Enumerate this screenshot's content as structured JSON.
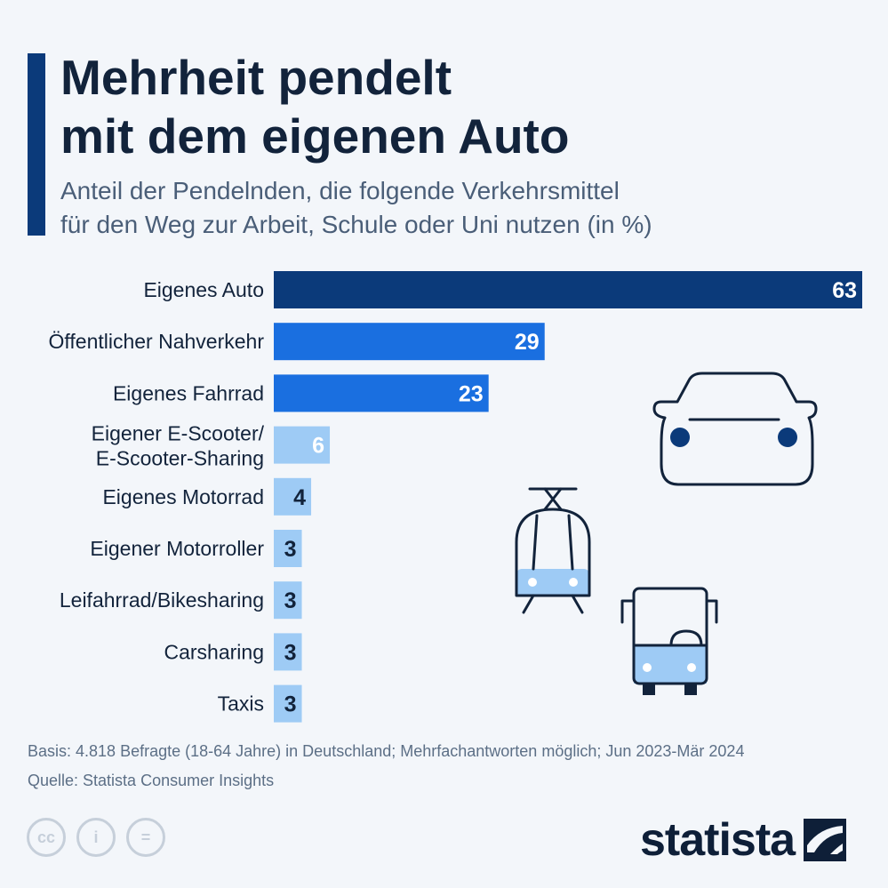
{
  "header": {
    "title_line1": "Mehrheit pendelt",
    "title_line2": "mit dem eigenen Auto",
    "subtitle_line1": "Anteil der Pendelnden, die folgende Verkehrsmittel",
    "subtitle_line2": "für den Weg zur Arbeit, Schule oder Uni nutzen (in %)"
  },
  "chart_data": {
    "type": "bar",
    "orientation": "horizontal",
    "title": "Mehrheit pendelt mit dem eigenen Auto",
    "subtitle": "Anteil der Pendelnden, die folgende Verkehrsmittel für den Weg zur Arbeit, Schule oder Uni nutzen (in %)",
    "categories": [
      [
        "Eigenes Auto"
      ],
      [
        "Öffentlicher Nahverkehr"
      ],
      [
        "Eigenes Fahrrad"
      ],
      [
        "Eigener E-Scooter/",
        "E-Scooter-Sharing"
      ],
      [
        "Eigenes Motorrad"
      ],
      [
        "Eigener Motorroller"
      ],
      [
        "Leifahrrad/Bikesharing"
      ],
      [
        "Carsharing"
      ],
      [
        "Taxis"
      ]
    ],
    "values": [
      63,
      29,
      23,
      6,
      4,
      3,
      3,
      3,
      3
    ],
    "xlim": [
      0,
      63
    ],
    "grid": false,
    "colors": {
      "dark": "#0b3a7a",
      "mid": "#1a6fe0",
      "light": "#9ecbf5",
      "label_on_dark": "#ffffff",
      "label_on_light": "#12233b"
    }
  },
  "footer": {
    "basis": "Basis: 4.818 Befragte (18-64 Jahre) in Deutschland; Mehrfachantworten möglich; Jun 2023-Mär 2024",
    "source": "Quelle: Statista Consumer Insights",
    "cc_icons": [
      "cc-icon",
      "attribution-icon",
      "no-derivatives-icon"
    ],
    "cc_glyphs": [
      "cc",
      "i",
      "="
    ],
    "logo_text": "statista"
  },
  "illustrations": [
    "car-icon",
    "tram-icon",
    "bus-icon"
  ]
}
